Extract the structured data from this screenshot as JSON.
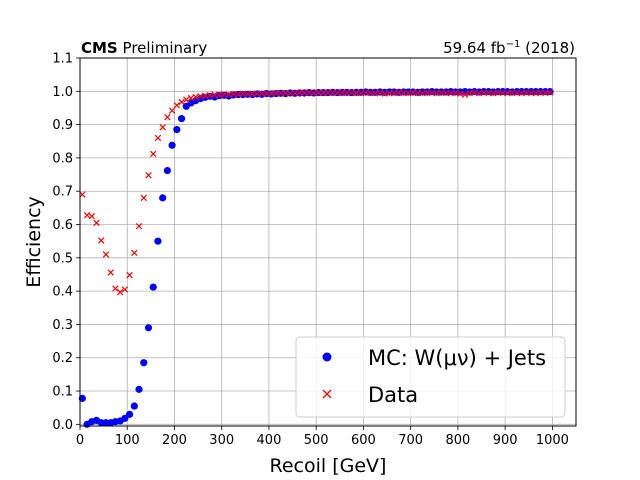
{
  "header": {
    "left_bold": "CMS",
    "left_rest": "Preliminary",
    "right_lumi": "59.64 fb",
    "right_exp": "−1",
    "right_year": "(2018)"
  },
  "chart_data": {
    "type": "scatter",
    "title": "",
    "xlabel": "Recoil [GeV]",
    "ylabel": "Efficiency",
    "xlim": [
      0,
      1050
    ],
    "ylim": [
      -0.005,
      1.1
    ],
    "grid": true,
    "legend_position": "lower-right",
    "x_ticks": [
      0,
      100,
      200,
      300,
      400,
      500,
      600,
      700,
      800,
      900,
      1000
    ],
    "y_ticks": [
      0.0,
      0.1,
      0.2,
      0.3,
      0.4,
      0.5,
      0.6,
      0.7,
      0.8,
      0.9,
      1.0,
      1.1
    ],
    "x_tick_labels": [
      "0",
      "100",
      "200",
      "300",
      "400",
      "500",
      "600",
      "700",
      "800",
      "900",
      "1000"
    ],
    "y_tick_labels": [
      "0.0",
      "0.1",
      "0.2",
      "0.3",
      "0.4",
      "0.5",
      "0.6",
      "0.7",
      "0.8",
      "0.9",
      "1.0",
      "1.1"
    ],
    "series": [
      {
        "name": "MC: W(μν) + Jets",
        "marker": "circle",
        "color": "#0000ff",
        "points": [
          [
            5,
            0.078
          ],
          [
            15,
            0.0
          ],
          [
            25,
            0.008
          ],
          [
            35,
            0.012
          ],
          [
            45,
            0.005
          ],
          [
            55,
            0.005
          ],
          [
            65,
            0.005
          ],
          [
            75,
            0.008
          ],
          [
            85,
            0.01
          ],
          [
            95,
            0.018
          ],
          [
            105,
            0.03
          ],
          [
            115,
            0.055
          ],
          [
            125,
            0.105
          ],
          [
            135,
            0.185
          ],
          [
            145,
            0.29
          ],
          [
            155,
            0.412
          ],
          [
            165,
            0.55
          ],
          [
            175,
            0.68
          ],
          [
            185,
            0.762
          ],
          [
            195,
            0.838
          ],
          [
            205,
            0.885
          ],
          [
            215,
            0.918
          ],
          [
            225,
            0.955
          ],
          [
            235,
            0.965
          ],
          [
            245,
            0.972
          ],
          [
            255,
            0.978
          ],
          [
            265,
            0.982
          ],
          [
            275,
            0.985
          ],
          [
            285,
            0.983
          ],
          [
            295,
            0.987
          ],
          [
            305,
            0.988
          ],
          [
            315,
            0.986
          ],
          [
            325,
            0.989
          ],
          [
            335,
            0.99
          ],
          [
            345,
            0.99
          ],
          [
            355,
            0.991
          ],
          [
            365,
            0.99
          ],
          [
            375,
            0.992
          ],
          [
            385,
            0.991
          ],
          [
            395,
            0.993
          ],
          [
            405,
            0.992
          ],
          [
            415,
            0.993
          ],
          [
            425,
            0.994
          ],
          [
            435,
            0.993
          ],
          [
            445,
            0.995
          ],
          [
            455,
            0.994
          ],
          [
            465,
            0.995
          ],
          [
            475,
            0.995
          ],
          [
            485,
            0.996
          ],
          [
            495,
            0.995
          ],
          [
            505,
            0.996
          ],
          [
            515,
            0.996
          ],
          [
            525,
            0.996
          ],
          [
            535,
            0.997
          ],
          [
            545,
            0.996
          ],
          [
            555,
            0.997
          ],
          [
            565,
            0.997
          ],
          [
            575,
            0.996
          ],
          [
            585,
            0.997
          ],
          [
            595,
            0.997
          ],
          [
            605,
            0.998
          ],
          [
            615,
            0.997
          ],
          [
            625,
            0.997
          ],
          [
            635,
            0.998
          ],
          [
            645,
            0.997
          ],
          [
            655,
            0.998
          ],
          [
            665,
            0.998
          ],
          [
            675,
            0.997
          ],
          [
            685,
            0.998
          ],
          [
            695,
            0.998
          ],
          [
            705,
            0.998
          ],
          [
            715,
            0.997
          ],
          [
            725,
            0.998
          ],
          [
            735,
            0.998
          ],
          [
            745,
            0.999
          ],
          [
            755,
            0.998
          ],
          [
            765,
            0.998
          ],
          [
            775,
            0.998
          ],
          [
            785,
            0.999
          ],
          [
            795,
            0.998
          ],
          [
            805,
            0.998
          ],
          [
            815,
            0.999
          ],
          [
            825,
            0.998
          ],
          [
            835,
            0.999
          ],
          [
            845,
            0.998
          ],
          [
            855,
            0.999
          ],
          [
            865,
            0.999
          ],
          [
            875,
            0.998
          ],
          [
            885,
            0.999
          ],
          [
            895,
            0.999
          ],
          [
            905,
            0.999
          ],
          [
            915,
            0.998
          ],
          [
            925,
            0.999
          ],
          [
            935,
            0.999
          ],
          [
            945,
            0.999
          ],
          [
            955,
            0.999
          ],
          [
            965,
            0.999
          ],
          [
            975,
            0.999
          ],
          [
            985,
            0.999
          ],
          [
            995,
            0.999
          ]
        ]
      },
      {
        "name": "Data",
        "marker": "x",
        "color": "#ff0000",
        "points": [
          [
            5,
            0.69
          ],
          [
            15,
            0.628
          ],
          [
            25,
            0.625
          ],
          [
            35,
            0.605
          ],
          [
            45,
            0.552
          ],
          [
            55,
            0.51
          ],
          [
            65,
            0.456
          ],
          [
            75,
            0.408
          ],
          [
            85,
            0.397
          ],
          [
            95,
            0.405
          ],
          [
            105,
            0.448
          ],
          [
            115,
            0.515
          ],
          [
            125,
            0.595
          ],
          [
            135,
            0.68
          ],
          [
            145,
            0.748
          ],
          [
            155,
            0.812
          ],
          [
            165,
            0.86
          ],
          [
            175,
            0.892
          ],
          [
            185,
            0.922
          ],
          [
            195,
            0.942
          ],
          [
            205,
            0.958
          ],
          [
            215,
            0.968
          ],
          [
            225,
            0.975
          ],
          [
            235,
            0.98
          ],
          [
            245,
            0.983
          ],
          [
            255,
            0.985
          ],
          [
            265,
            0.987
          ],
          [
            275,
            0.988
          ],
          [
            285,
            0.99
          ],
          [
            295,
            0.989
          ],
          [
            305,
            0.991
          ],
          [
            315,
            0.99
          ],
          [
            325,
            0.992
          ],
          [
            335,
            0.991
          ],
          [
            345,
            0.993
          ],
          [
            355,
            0.992
          ],
          [
            365,
            0.993
          ],
          [
            375,
            0.993
          ],
          [
            385,
            0.994
          ],
          [
            395,
            0.993
          ],
          [
            405,
            0.994
          ],
          [
            415,
            0.995
          ],
          [
            425,
            0.994
          ],
          [
            435,
            0.995
          ],
          [
            445,
            0.994
          ],
          [
            455,
            0.995
          ],
          [
            465,
            0.996
          ],
          [
            475,
            0.995
          ],
          [
            485,
            0.996
          ],
          [
            495,
            0.995
          ],
          [
            505,
            0.996
          ],
          [
            515,
            0.995
          ],
          [
            525,
            0.996
          ],
          [
            535,
            0.996
          ],
          [
            545,
            0.995
          ],
          [
            555,
            0.996
          ],
          [
            565,
            0.995
          ],
          [
            575,
            0.996
          ],
          [
            585,
            0.995
          ],
          [
            595,
            0.994
          ],
          [
            605,
            0.996
          ],
          [
            615,
            0.995
          ],
          [
            625,
            0.994
          ],
          [
            635,
            0.996
          ],
          [
            645,
            0.993
          ],
          [
            655,
            0.995
          ],
          [
            665,
            0.994
          ],
          [
            675,
            0.996
          ],
          [
            685,
            0.995
          ],
          [
            695,
            0.994
          ],
          [
            705,
            0.996
          ],
          [
            715,
            0.995
          ],
          [
            725,
            0.994
          ],
          [
            735,
            0.996
          ],
          [
            745,
            0.995
          ],
          [
            755,
            0.994
          ],
          [
            765,
            0.996
          ],
          [
            775,
            0.995
          ],
          [
            785,
            0.994
          ],
          [
            795,
            0.996
          ],
          [
            805,
            0.993
          ],
          [
            815,
            0.99
          ],
          [
            825,
            0.995
          ],
          [
            835,
            0.996
          ],
          [
            845,
            0.994
          ],
          [
            855,
            0.996
          ],
          [
            865,
            0.995
          ],
          [
            875,
            0.994
          ],
          [
            885,
            0.996
          ],
          [
            895,
            0.995
          ],
          [
            905,
            0.994
          ],
          [
            915,
            0.996
          ],
          [
            925,
            0.995
          ],
          [
            935,
            0.994
          ],
          [
            945,
            0.996
          ],
          [
            955,
            0.995
          ],
          [
            965,
            0.994
          ],
          [
            975,
            0.996
          ],
          [
            985,
            0.995
          ],
          [
            995,
            0.996
          ]
        ]
      }
    ]
  }
}
